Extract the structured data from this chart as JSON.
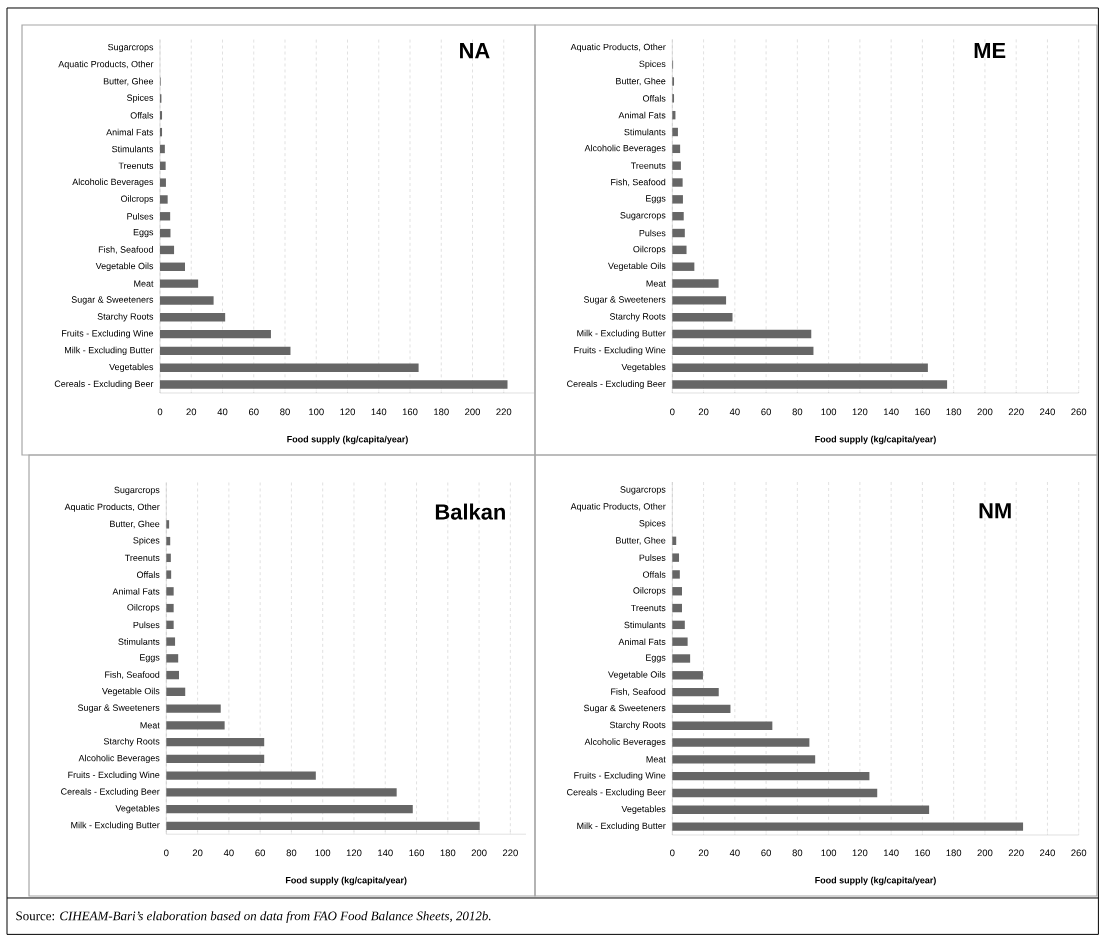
{
  "chart_data": [
    {
      "type": "bar",
      "orientation": "horizontal",
      "title": "NA",
      "xlabel": "Food supply (kg/capita/year)",
      "color": "#666666",
      "grid": "x",
      "categories": [
        "Sugarcrops",
        "Aquatic Products, Other",
        "Butter, Ghee",
        "Spices",
        "Offals",
        "Animal Fats",
        "Stimulants",
        "Treenuts",
        "Alcoholic Beverages",
        "Oilcrops",
        "Pulses",
        "Eggs",
        "Fish, Seafood",
        "Vegetable Oils",
        "Meat",
        "Sugar & Sweeteners",
        "Starchy Roots",
        "Fruits - Excluding Wine",
        "Milk - Excluding Butter",
        "Vegetables",
        "Cereals - Excluding Beer"
      ],
      "values": [
        0,
        0,
        0.4,
        0.9,
        1.3,
        1.3,
        3.1,
        3.6,
        3.8,
        4.9,
        6.5,
        6.7,
        9,
        16,
        24.4,
        34.3,
        41.7,
        71,
        83.5,
        165.5,
        222.4
      ],
      "xlim": [
        0,
        240
      ],
      "xticks": [
        0,
        20,
        40,
        60,
        80,
        100,
        120,
        140,
        160,
        180,
        200,
        220,
        {
          "value": 240,
          "label": null
        }
      ]
    },
    {
      "type": "bar",
      "orientation": "horizontal",
      "title": "ME",
      "xlabel": "Food supply (kg/capita/year)",
      "color": "#666666",
      "grid": "x",
      "categories": [
        "Aquatic Products, Other",
        "Spices",
        "Butter, Ghee",
        "Offals",
        "Animal Fats",
        "Stimulants",
        "Alcoholic Beverages",
        "Treenuts",
        "Fish, Seafood",
        "Eggs",
        "Sugarcrops",
        "Pulses",
        "Oilcrops",
        "Vegetable Oils",
        "Meat",
        "Sugar & Sweeteners",
        "Starchy Roots",
        "Milk - Excluding Butter",
        "Fruits - Excluding Wine",
        "Vegetables",
        "Cereals - Excluding Beer"
      ],
      "values": [
        0,
        0.5,
        1.1,
        1.1,
        2,
        3.6,
        5,
        5.5,
        6.6,
        6.8,
        7.3,
        8,
        9.1,
        14.1,
        29.6,
        34.4,
        38.5,
        88.9,
        90.3,
        163.5,
        175.8
      ],
      "xlim": [
        0,
        260
      ],
      "xticks": [
        0,
        20,
        40,
        60,
        80,
        100,
        120,
        140,
        160,
        180,
        200,
        220,
        240,
        260
      ]
    },
    {
      "type": "bar",
      "orientation": "horizontal",
      "title": "Balkan",
      "xlabel": "Food supply (kg/capita/year)",
      "color": "#666666",
      "grid": "x",
      "categories": [
        "Sugarcrops",
        "Aquatic Products, Other",
        "Butter, Ghee",
        "Spices",
        "Treenuts",
        "Offals",
        "Animal Fats",
        "Oilcrops",
        "Pulses",
        "Stimulants",
        "Eggs",
        "Fish, Seafood",
        "Vegetable Oils",
        "Sugar & Sweeteners",
        "Meat",
        "Starchy Roots",
        "Alcoholic Beverages",
        "Fruits - Excluding Wine",
        "Cereals - Excluding Beer",
        "Vegetables",
        "Milk - Excluding Butter"
      ],
      "values": [
        0,
        0,
        1.8,
        2.5,
        2.9,
        3.1,
        4.7,
        4.7,
        4.7,
        5.6,
        7.6,
        8.1,
        12.1,
        34.8,
        37.3,
        62.6,
        62.6,
        95.6,
        147.3,
        157.6,
        200.4
      ],
      "xlim": [
        0,
        230
      ],
      "xticks": [
        0,
        20,
        40,
        60,
        80,
        100,
        120,
        140,
        160,
        180,
        200,
        220
      ]
    },
    {
      "type": "bar",
      "orientation": "horizontal",
      "title": "NM",
      "xlabel": "Food supply (kg/capita/year)",
      "color": "#666666",
      "grid": "x",
      "categories": [
        "Sugarcrops",
        "Aquatic Products, Other",
        "Spices",
        "Butter, Ghee",
        "Pulses",
        "Offals",
        "Oilcrops",
        "Treenuts",
        "Stimulants",
        "Animal Fats",
        "Eggs",
        "Vegetable Oils",
        "Fish, Seafood",
        "Sugar & Sweeteners",
        "Starchy Roots",
        "Alcoholic Beverages",
        "Meat",
        "Fruits - Excluding Wine",
        "Cereals - Excluding Beer",
        "Vegetables",
        "Milk - Excluding Butter"
      ],
      "values": [
        0,
        0,
        0,
        2.5,
        4.3,
        4.8,
        6.2,
        6.2,
        8,
        9.8,
        11.4,
        19.6,
        29.7,
        37.2,
        64,
        87.7,
        91.4,
        126.1,
        131.1,
        164.3,
        224.4
      ],
      "xlim": [
        0,
        260
      ],
      "xticks": [
        0,
        20,
        40,
        60,
        80,
        100,
        120,
        140,
        160,
        180,
        200,
        220,
        240,
        260
      ],
      "annotations": [
        "Source: *CIHEAM-Bari’s elaboration based on data from FAO Food Balance Sheets, 2012b.*"
      ]
    }
  ]
}
